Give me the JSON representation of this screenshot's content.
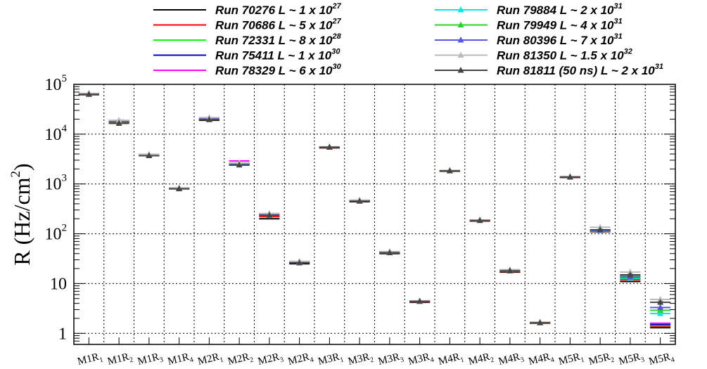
{
  "chart_data": {
    "type": "scatter",
    "ylabel": "R (Hz/cm",
    "ylabel_sup": "2",
    "ylabel_end": ")",
    "yscale": "log",
    "ylim": [
      0.6,
      100000
    ],
    "y_ticks": [
      {
        "value": 1,
        "label": "1",
        "sup": ""
      },
      {
        "value": 10,
        "label": "10",
        "sup": ""
      },
      {
        "value": 100,
        "label": "10",
        "sup": "2"
      },
      {
        "value": 1000,
        "label": "10",
        "sup": "3"
      },
      {
        "value": 10000,
        "label": "10",
        "sup": "4"
      },
      {
        "value": 100000,
        "label": "10",
        "sup": "5"
      }
    ],
    "grid": true,
    "legend_placement": "top",
    "categories": [
      {
        "main": "M1R",
        "sub": "1"
      },
      {
        "main": "M1R",
        "sub": "2"
      },
      {
        "main": "M1R",
        "sub": "3"
      },
      {
        "main": "M1R",
        "sub": "4"
      },
      {
        "main": "M2R",
        "sub": "1"
      },
      {
        "main": "M2R",
        "sub": "2"
      },
      {
        "main": "M2R",
        "sub": "3"
      },
      {
        "main": "M2R",
        "sub": "4"
      },
      {
        "main": "M3R",
        "sub": "1"
      },
      {
        "main": "M3R",
        "sub": "2"
      },
      {
        "main": "M3R",
        "sub": "3"
      },
      {
        "main": "M3R",
        "sub": "4"
      },
      {
        "main": "M4R",
        "sub": "1"
      },
      {
        "main": "M4R",
        "sub": "2"
      },
      {
        "main": "M4R",
        "sub": "3"
      },
      {
        "main": "M4R",
        "sub": "4"
      },
      {
        "main": "M5R",
        "sub": "1"
      },
      {
        "main": "M5R",
        "sub": "2"
      },
      {
        "main": "M5R",
        "sub": "3"
      },
      {
        "main": "M5R",
        "sub": "4"
      }
    ],
    "series": [
      {
        "name": "Run 70276 L ~ 1 x 10",
        "sup": "27",
        "color": "#000000",
        "marker": "none",
        "values": [
          62000,
          17000,
          3700,
          800,
          19000,
          2400,
          200,
          25,
          5300,
          440,
          40,
          4.2,
          1800,
          180,
          17,
          1.6,
          1350,
          110,
          11,
          1.3
        ]
      },
      {
        "name": "Run 70686 L ~ 5 x 10",
        "sup": "27",
        "color": "#ff0000",
        "marker": "none",
        "values": [
          63000,
          17500,
          3750,
          810,
          19500,
          2500,
          220,
          26,
          5400,
          450,
          41,
          4.3,
          1820,
          182,
          17.5,
          1.6,
          1360,
          112,
          12,
          1.4
        ]
      },
      {
        "name": "Run 72331 L ~ 8 x 10",
        "sup": "28",
        "color": "#00ff00",
        "marker": "none",
        "values": [
          63500,
          17800,
          3800,
          815,
          19800,
          2550,
          240,
          26.5,
          5450,
          455,
          42,
          4.35,
          1830,
          185,
          17.8,
          1.62,
          1370,
          114,
          12.5,
          1.45
        ]
      },
      {
        "name": "Run 75411 L ~ 1 x 10",
        "sup": "30",
        "color": "#0000cc",
        "marker": "none",
        "values": [
          64000,
          18000,
          3850,
          820,
          20000,
          2600,
          245,
          27,
          5500,
          460,
          42.5,
          4.4,
          1840,
          186,
          18,
          1.64,
          1380,
          116,
          13,
          1.5
        ]
      },
      {
        "name": "Run 78329 L ~ 6 x 10",
        "sup": "30",
        "color": "#ff00ff",
        "marker": "none",
        "values": [
          64500,
          18500,
          3900,
          825,
          20500,
          2900,
          250,
          27.5,
          5550,
          470,
          43,
          4.45,
          1850,
          188,
          18.2,
          1.65,
          1390,
          118,
          14,
          1.6
        ]
      },
      {
        "name": "Run 79884 L ~ 2 x 10",
        "sup": "31",
        "color": "#00e5e5",
        "marker": "triangle",
        "values": [
          65000,
          18200,
          3850,
          820,
          20200,
          2550,
          240,
          27,
          5500,
          460,
          42,
          4.4,
          1840,
          186,
          18,
          1.64,
          1380,
          116,
          13,
          2.5
        ]
      },
      {
        "name": "Run 79949 L ~ 4 x 10",
        "sup": "31",
        "color": "#33cc33",
        "marker": "triangle",
        "values": [
          65500,
          18400,
          3900,
          830,
          20400,
          2600,
          245,
          27.5,
          5550,
          465,
          43,
          4.45,
          1850,
          188,
          18.5,
          1.66,
          1390,
          118,
          14,
          2.9
        ]
      },
      {
        "name": "Run 80396 L ~ 7 x 10",
        "sup": "31",
        "color": "#5555dd",
        "marker": "triangle",
        "values": [
          65000,
          18300,
          3880,
          825,
          20300,
          2580,
          242,
          27.2,
          5520,
          462,
          42.5,
          4.42,
          1845,
          187,
          18.2,
          1.65,
          1385,
          117,
          13.5,
          3.3
        ]
      },
      {
        "name": "Run 81350 L ~ 1.5 x 10",
        "sup": "32",
        "color": "#bbbbbb",
        "marker": "triangle",
        "values": [
          66000,
          19000,
          3950,
          840,
          21500,
          2650,
          255,
          28,
          5600,
          475,
          44,
          4.5,
          1870,
          190,
          19,
          1.68,
          1420,
          135,
          17,
          4.8
        ]
      },
      {
        "name": "Run 81811 (50 ns) L ~ 2 x 10",
        "sup": "31",
        "color": "#444444",
        "marker": "triangle",
        "values": [
          63000,
          16500,
          3700,
          800,
          19500,
          2400,
          235,
          26,
          5450,
          450,
          41.5,
          4.4,
          1830,
          184,
          18,
          1.63,
          1370,
          120,
          15,
          4.2
        ]
      }
    ]
  }
}
